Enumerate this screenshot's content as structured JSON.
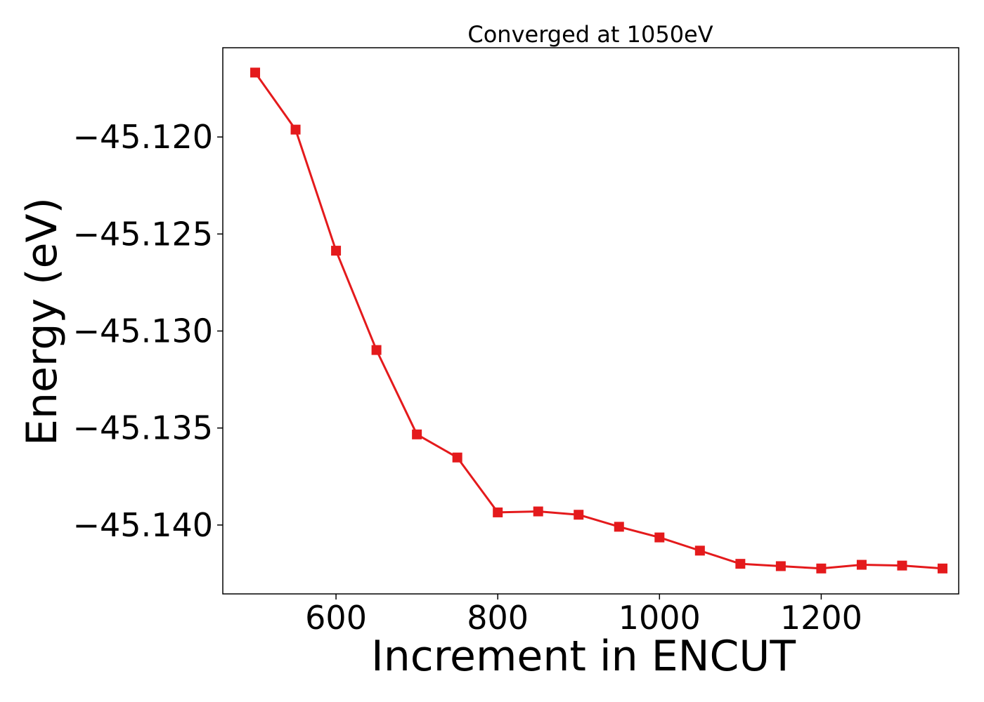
{
  "chart_data": {
    "type": "line",
    "title": "Converged at 1050eV",
    "xlabel": "Increment in ENCUT",
    "ylabel": "Energy (eV)",
    "xlim": [
      460,
      1370
    ],
    "ylim": [
      -45.14355,
      -45.1154
    ],
    "x_ticks": [
      600,
      800,
      1000,
      1200
    ],
    "x_tick_labels": [
      "600",
      "800",
      "1000",
      "1200"
    ],
    "y_ticks": [
      -45.12,
      -45.125,
      -45.13,
      -45.135,
      -45.14
    ],
    "y_tick_labels": [
      "−45.120",
      "−45.125",
      "−45.130",
      "−45.135",
      "−45.140"
    ],
    "grid": false,
    "series": [
      {
        "color": "#e41a1c",
        "marker": "square",
        "x": [
          500,
          550,
          600,
          650,
          700,
          750,
          800,
          850,
          900,
          950,
          1000,
          1050,
          1100,
          1150,
          1200,
          1250,
          1300,
          1350
        ],
        "y": [
          -45.11668,
          -45.11962,
          -45.12586,
          -45.13098,
          -45.13533,
          -45.13652,
          -45.13935,
          -45.1393,
          -45.13947,
          -45.14009,
          -45.14064,
          -45.14132,
          -45.142,
          -45.14212,
          -45.14224,
          -45.14205,
          -45.14209,
          -45.14224
        ]
      }
    ]
  }
}
